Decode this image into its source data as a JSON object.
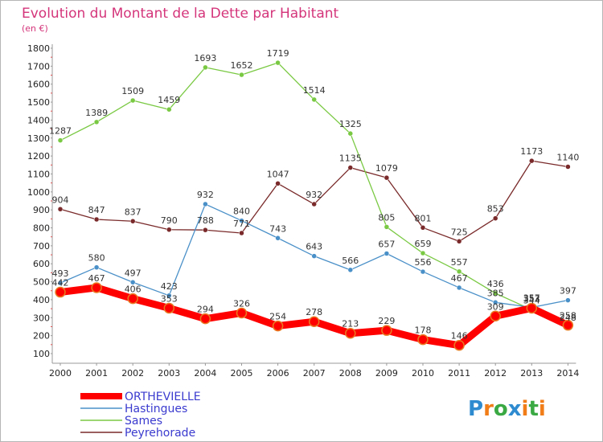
{
  "chart_data": {
    "type": "line",
    "title": "Evolution du Montant de la Dette par Habitant",
    "subtitle": "(en €)",
    "x": [
      "2000",
      "2001",
      "2002",
      "2003",
      "2004",
      "2005",
      "2006",
      "2007",
      "2008",
      "2009",
      "2010",
      "2011",
      "2012",
      "2013",
      "2014"
    ],
    "ylim": [
      100,
      1800
    ],
    "yticks": [
      100,
      200,
      300,
      400,
      500,
      600,
      700,
      800,
      900,
      1000,
      1100,
      1200,
      1300,
      1400,
      1500,
      1600,
      1700,
      1800
    ],
    "grid": false,
    "legend_position": "bottom-left",
    "series": [
      {
        "name": "ORTHEVIELLE",
        "color": "#ff0000",
        "values": [
          442,
          467,
          406,
          353,
          294,
          326,
          254,
          278,
          213,
          229,
          178,
          146,
          309,
          353,
          258
        ]
      },
      {
        "name": "Hastingues",
        "color": "#4a90c8",
        "values": [
          493,
          580,
          497,
          423,
          932,
          840,
          743,
          643,
          566,
          657,
          556,
          467,
          385,
          357,
          397
        ]
      },
      {
        "name": "Sames",
        "color": "#7ac943",
        "values": [
          1287,
          1389,
          1509,
          1459,
          1693,
          1652,
          1719,
          1514,
          1325,
          805,
          659,
          557,
          436,
          344,
          248
        ]
      },
      {
        "name": "Peyrehorade",
        "color": "#7a2a2a",
        "values": [
          904,
          847,
          837,
          790,
          788,
          771,
          1047,
          932,
          1135,
          1079,
          801,
          725,
          853,
          1173,
          1140
        ]
      }
    ]
  },
  "logo": {
    "text": "Proxiti",
    "letter_colors": [
      "#2e8bd0",
      "#f07d18",
      "#3aa843",
      "#2e8bd0",
      "#f07d18",
      "#3aa843",
      "#f07d18"
    ]
  }
}
